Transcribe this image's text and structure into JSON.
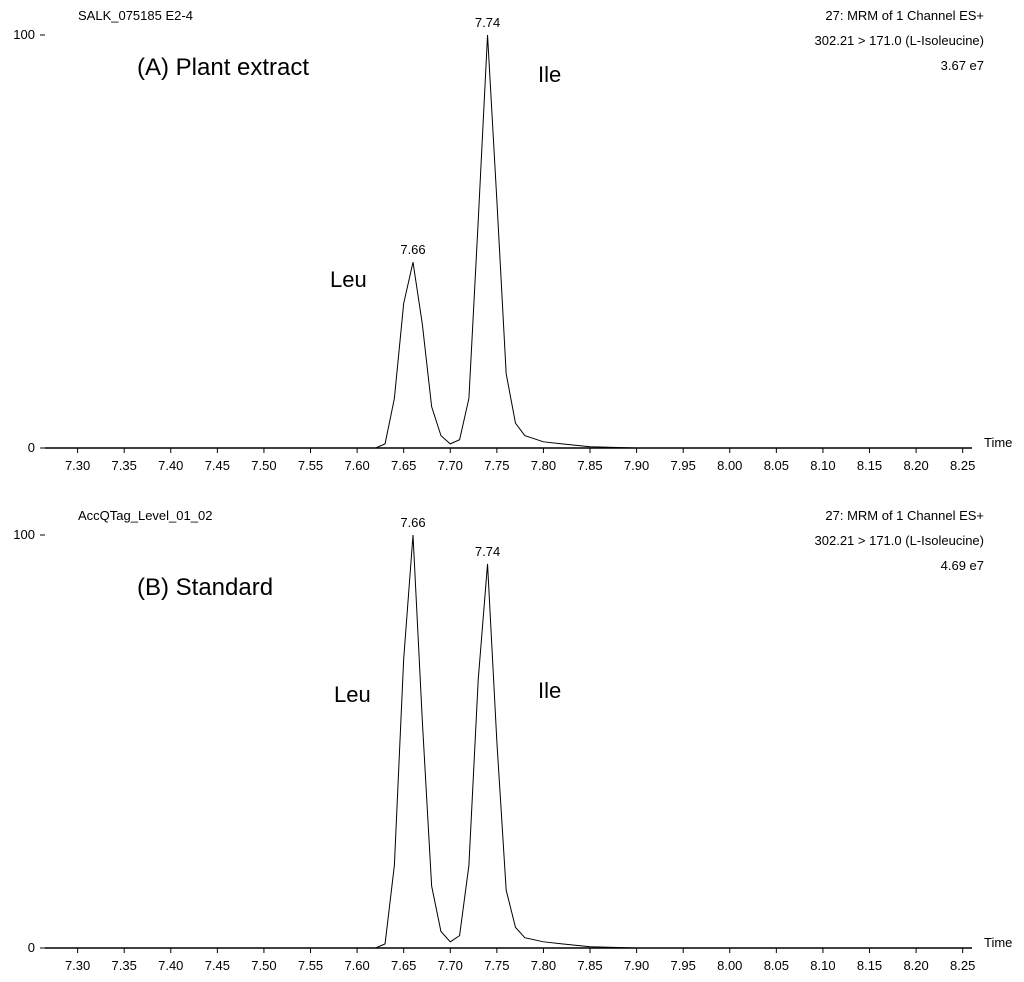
{
  "chart_data": [
    {
      "type": "line",
      "sample": "SALK_075185 E2-4",
      "header": [
        "27: MRM of 1 Channel ES+",
        "302.21 > 171.0 (L-Isoleucine)",
        "3.67 e7"
      ],
      "annotations": [
        "(A) Plant extract",
        "Leu",
        "Ile"
      ],
      "x_label": "Time",
      "x": [
        7.265,
        7.62,
        7.63,
        7.64,
        7.65,
        7.66,
        7.67,
        7.68,
        7.69,
        7.7,
        7.71,
        7.72,
        7.73,
        7.74,
        7.75,
        7.76,
        7.77,
        7.78,
        7.8,
        7.82,
        7.85,
        7.9,
        8.26
      ],
      "values": [
        0,
        0,
        1,
        12,
        35,
        45,
        30,
        10,
        3,
        1,
        2,
        12,
        55,
        100,
        60,
        18,
        6,
        3,
        1.5,
        1,
        0.3,
        0,
        0
      ],
      "peak_labels": [
        7.66,
        7.74
      ],
      "color": "#000000",
      "xlim": [
        7.265,
        8.26
      ],
      "xticks": [
        {
          "value": 7.3,
          "label": "7.30"
        },
        7.35,
        {
          "value": 7.4,
          "label": "7.40"
        },
        7.45,
        {
          "value": 7.5,
          "label": "7.50"
        },
        7.55,
        {
          "value": 7.6,
          "label": "7.60"
        },
        7.65,
        {
          "value": 7.7,
          "label": "7.70"
        },
        7.75,
        {
          "value": 7.8,
          "label": "7.80"
        },
        7.85,
        {
          "value": 7.9,
          "label": "7.90"
        },
        7.95,
        {
          "value": 8.0,
          "label": "8.00"
        },
        8.05,
        {
          "value": 8.1,
          "label": "8.10"
        },
        8.15,
        {
          "value": 8.2,
          "label": "8.20"
        },
        8.25
      ],
      "ylim": [
        0,
        100
      ],
      "yticks": [
        0,
        100
      ]
    },
    {
      "type": "line",
      "sample": "AccQTag_Level_01_02",
      "header": [
        "27: MRM of 1 Channel ES+",
        "302.21 > 171.0 (L-Isoleucine)",
        "4.69 e7"
      ],
      "annotations": [
        "(B) Standard",
        "Leu",
        "Ile"
      ],
      "x_label": "Time",
      "x": [
        7.265,
        7.62,
        7.63,
        7.64,
        7.65,
        7.66,
        7.67,
        7.68,
        7.69,
        7.7,
        7.71,
        7.72,
        7.73,
        7.74,
        7.75,
        7.76,
        7.77,
        7.78,
        7.8,
        7.82,
        7.85,
        7.9,
        8.26
      ],
      "values": [
        0,
        0,
        1,
        20,
        70,
        100,
        55,
        15,
        4,
        1.5,
        3,
        20,
        65,
        93,
        50,
        14,
        5,
        2.5,
        1.5,
        1,
        0.3,
        0,
        0
      ],
      "peak_labels": [
        7.66,
        7.74
      ],
      "color": "#000000",
      "xlim": [
        7.265,
        8.26
      ],
      "xticks": [
        {
          "value": 7.3,
          "label": "7.30"
        },
        7.35,
        {
          "value": 7.4,
          "label": "7.40"
        },
        7.45,
        {
          "value": 7.5,
          "label": "7.50"
        },
        7.55,
        {
          "value": 7.6,
          "label": "7.60"
        },
        7.65,
        {
          "value": 7.7,
          "label": "7.70"
        },
        7.75,
        {
          "value": 7.8,
          "label": "7.80"
        },
        7.85,
        {
          "value": 7.9,
          "label": "7.90"
        },
        7.95,
        {
          "value": 8.0,
          "label": "8.00"
        },
        8.05,
        {
          "value": 8.1,
          "label": "8.10"
        },
        8.15,
        {
          "value": 8.2,
          "label": "8.20"
        },
        8.25
      ],
      "ylim": [
        0,
        100
      ],
      "yticks": [
        0,
        100
      ]
    }
  ]
}
